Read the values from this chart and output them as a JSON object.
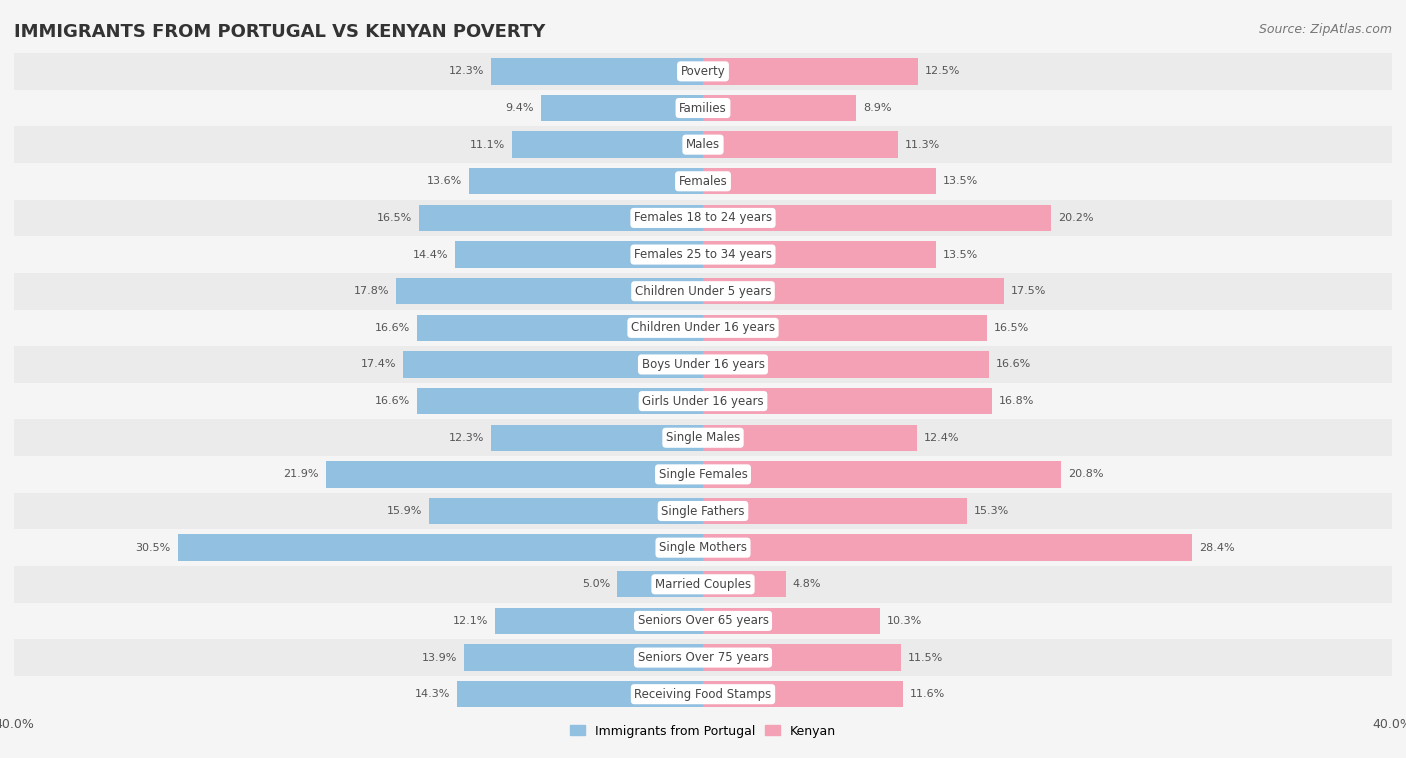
{
  "title": "IMMIGRANTS FROM PORTUGAL VS KENYAN POVERTY",
  "source": "Source: ZipAtlas.com",
  "categories": [
    "Poverty",
    "Families",
    "Males",
    "Females",
    "Females 18 to 24 years",
    "Females 25 to 34 years",
    "Children Under 5 years",
    "Children Under 16 years",
    "Boys Under 16 years",
    "Girls Under 16 years",
    "Single Males",
    "Single Females",
    "Single Fathers",
    "Single Mothers",
    "Married Couples",
    "Seniors Over 65 years",
    "Seniors Over 75 years",
    "Receiving Food Stamps"
  ],
  "portugal_values": [
    12.3,
    9.4,
    11.1,
    13.6,
    16.5,
    14.4,
    17.8,
    16.6,
    17.4,
    16.6,
    12.3,
    21.9,
    15.9,
    30.5,
    5.0,
    12.1,
    13.9,
    14.3
  ],
  "kenyan_values": [
    12.5,
    8.9,
    11.3,
    13.5,
    20.2,
    13.5,
    17.5,
    16.5,
    16.6,
    16.8,
    12.4,
    20.8,
    15.3,
    28.4,
    4.8,
    10.3,
    11.5,
    11.6
  ],
  "portugal_color": "#92C0E0",
  "kenyan_color": "#F4A0B5",
  "portugal_label": "Immigrants from Portugal",
  "kenyan_label": "Kenyan",
  "bar_height": 0.72,
  "xlim": 40.0,
  "background_color": "#f5f5f5",
  "row_odd_color": "#ebebeb",
  "row_even_color": "#f5f5f5",
  "title_fontsize": 13,
  "source_fontsize": 9,
  "label_fontsize": 8.5,
  "value_fontsize": 8,
  "legend_fontsize": 9,
  "label_pill_color": "#ffffff"
}
